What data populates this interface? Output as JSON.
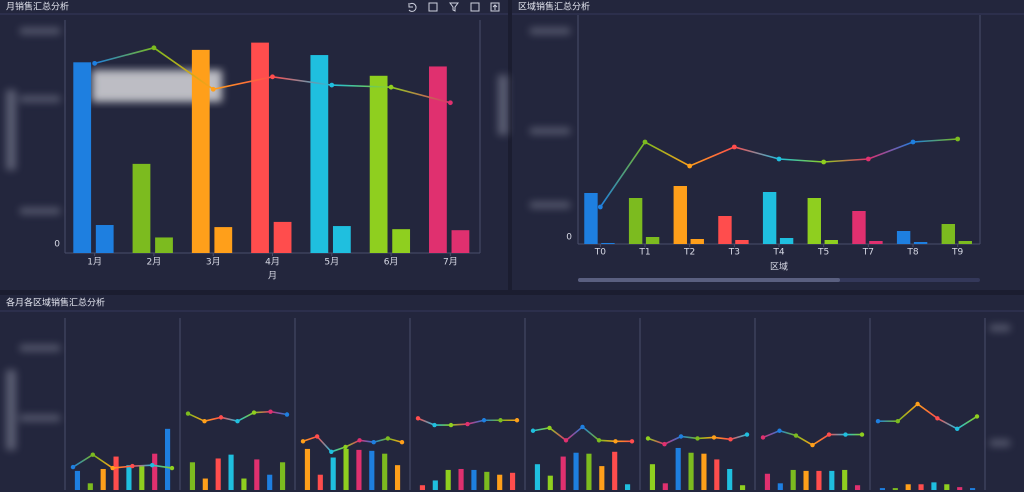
{
  "chart_data": [
    {
      "type": "combo",
      "title": "月销售汇总分析",
      "categories": [
        "1月",
        "2月",
        "3月",
        "4月",
        "5月",
        "6月",
        "7月"
      ],
      "x_label": "月",
      "colors": [
        "#1e7fe0",
        "#7cbb1f",
        "#ff9f1a",
        "#ff4d4d",
        "#1fbfdf",
        "#8fcf1f",
        "#e0306f"
      ],
      "series": [
        {
          "values": [
            184,
            86,
            196,
            203,
            191,
            171,
            180
          ]
        },
        {
          "values": [
            27,
            15,
            25,
            30,
            26,
            23,
            22
          ]
        },
        {
          "values": [
            183,
            198,
            158,
            170,
            162,
            160,
            145
          ],
          "axis": "y2"
        }
      ],
      "ylim": [
        0,
        220
      ],
      "yticks": [
        0
      ],
      "y2lim": [
        0,
        220
      ]
    },
    {
      "type": "combo",
      "title": "区域销售汇总分析",
      "categories": [
        "T0",
        "T1",
        "T2",
        "T3",
        "T4",
        "T5",
        "T7",
        "T8",
        "T9"
      ],
      "x_label": "区域",
      "colors": [
        "#1e7fe0",
        "#7cbb1f",
        "#ff9f1a",
        "#ff4d4d",
        "#1fbfdf",
        "#8fcf1f",
        "#e0306f",
        "#1e7fe0",
        "#7cbb1f"
      ],
      "series": [
        {
          "values": [
            51,
            46,
            58,
            28,
            52,
            46,
            33,
            13,
            20
          ]
        },
        {
          "values": [
            1,
            7,
            5,
            4,
            6,
            4,
            3,
            2,
            3
          ]
        },
        {
          "values": [
            37,
            102,
            78,
            97,
            85,
            82,
            85,
            102,
            105
          ],
          "axis": "y2"
        }
      ],
      "ylim": [
        0,
        224
      ],
      "yticks": [
        0
      ],
      "y2lim": [
        0,
        224
      ]
    },
    {
      "type": "small_multiples",
      "title": "各月各区域销售汇总分析",
      "colors": [
        "#1e7fe0",
        "#7cbb1f",
        "#ff9f1a",
        "#ff4d4d",
        "#1fbfdf",
        "#8fcf1f",
        "#e0306f"
      ],
      "panels": [
        {
          "bars": [
            20,
            7,
            22,
            35,
            26,
            25,
            38,
            64
          ],
          "line": [
            24,
            37,
            23,
            25,
            26,
            23
          ]
        },
        {
          "bars": [
            29,
            12,
            33,
            37,
            12,
            32,
            16,
            29
          ],
          "line": [
            80,
            72,
            76,
            72,
            81,
            82,
            79
          ]
        },
        {
          "bars": [
            43,
            16,
            34,
            43,
            42,
            41,
            38,
            26
          ],
          "line": [
            51,
            56,
            40,
            45,
            52,
            50,
            54,
            50
          ]
        },
        {
          "bars": [
            5,
            10,
            21,
            22,
            21,
            19,
            16,
            18
          ],
          "line": [
            75,
            68,
            68,
            69,
            73,
            73,
            73
          ]
        },
        {
          "bars": [
            27,
            15,
            35,
            39,
            38,
            25,
            40,
            6
          ],
          "line": [
            62,
            65,
            52,
            66,
            52,
            51,
            51
          ]
        },
        {
          "bars": [
            27,
            7,
            44,
            39,
            38,
            32,
            22,
            5
          ],
          "line": [
            54,
            48,
            56,
            54,
            55,
            53,
            58
          ]
        },
        {
          "bars": [
            17,
            7,
            21,
            20,
            20,
            20,
            21,
            5
          ],
          "line": [
            55,
            62,
            57,
            47,
            58,
            58,
            58
          ]
        },
        {
          "bars": [
            2,
            2,
            6,
            6,
            8,
            6,
            3,
            2
          ],
          "line": [
            72,
            72,
            90,
            75,
            64,
            77
          ]
        }
      ],
      "ylim": [
        0,
        180
      ]
    }
  ]
}
